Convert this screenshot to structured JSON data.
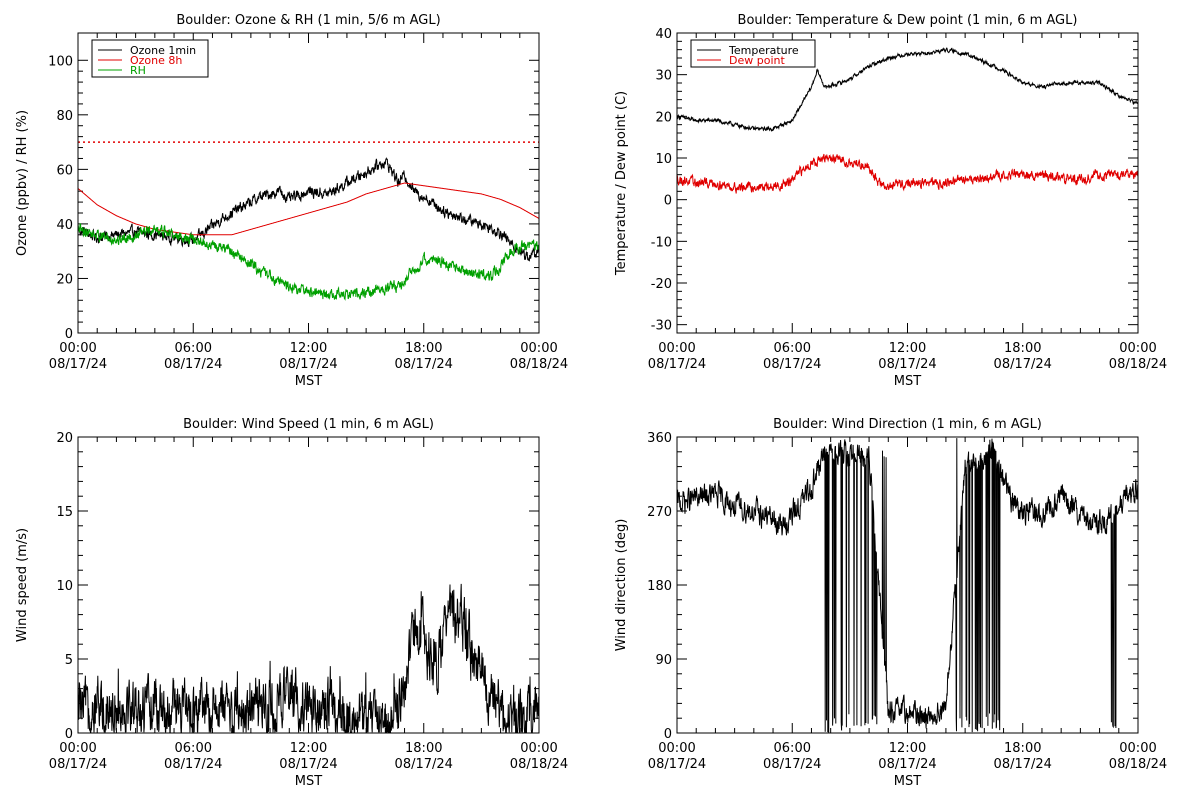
{
  "page": {
    "background": "#ffffff"
  },
  "chart_data": [
    {
      "id": "ozone_rh",
      "type": "line",
      "title": "Boulder: Ozone & RH (1 min, 5/6 m AGL)",
      "ylabel": "Ozone (ppbv) / RH (%)",
      "xlabel": "MST",
      "xlim": [
        0,
        24
      ],
      "ylim": [
        0,
        110
      ],
      "yticks": [
        0,
        20,
        40,
        60,
        80,
        100
      ],
      "xtick_times": [
        "00:00",
        "06:00",
        "12:00",
        "18:00",
        "00:00"
      ],
      "xtick_dates": [
        "08/17/24",
        "08/17/24",
        "08/17/24",
        "08/17/24",
        "08/18/24"
      ],
      "legend_position": "top-left",
      "reference_line": {
        "y": 70,
        "color": "#e00000",
        "style": "dotted"
      },
      "series": [
        {
          "name": "Ozone 1min",
          "color": "#000000",
          "noise": 1.6,
          "x": [
            0,
            1,
            2,
            3,
            4,
            5,
            6,
            6.8,
            7.5,
            8.5,
            9.5,
            10.5,
            11,
            12,
            13,
            14,
            14.5,
            15,
            15.5,
            16,
            16.3,
            16.7,
            17,
            17.5,
            18,
            19,
            20,
            21,
            22,
            22.5,
            23,
            23.5,
            24
          ],
          "y": [
            38,
            35,
            36,
            37,
            36,
            35,
            34,
            38,
            42,
            46,
            50,
            52,
            49,
            52,
            51,
            55,
            57,
            59,
            61,
            63,
            60,
            55,
            58,
            52,
            50,
            45,
            42,
            40,
            37,
            33,
            30,
            28,
            30
          ]
        },
        {
          "name": "Ozone 8h",
          "color": "#e00000",
          "noise": 0,
          "x": [
            0,
            1,
            2,
            3,
            4,
            5,
            6,
            7,
            8,
            9,
            10,
            11,
            12,
            13,
            14,
            15,
            16,
            17,
            18,
            19,
            20,
            21,
            22,
            23,
            24
          ],
          "y": [
            53,
            47,
            43,
            40,
            38,
            37,
            36,
            36,
            36,
            38,
            40,
            42,
            44,
            46,
            48,
            51,
            53,
            55,
            54,
            53,
            52,
            51,
            49,
            46,
            42
          ]
        },
        {
          "name": "RH",
          "color": "#00a000",
          "noise": 1.6,
          "x": [
            0,
            1,
            2,
            3,
            4,
            5,
            6,
            7,
            8,
            9,
            10,
            11,
            12,
            13,
            14,
            15,
            16,
            16.8,
            17.5,
            18,
            19,
            20,
            21,
            21.5,
            22,
            22.5,
            23,
            24
          ],
          "y": [
            38,
            36,
            34,
            36,
            38,
            36,
            34,
            32,
            30,
            25,
            21,
            17,
            15,
            14,
            14,
            15,
            16,
            18,
            23,
            27,
            26,
            23,
            21,
            21,
            24,
            30,
            32,
            32
          ]
        }
      ]
    },
    {
      "id": "temp_dew",
      "type": "line",
      "title": "Boulder: Temperature & Dew point (1 min, 6 m AGL)",
      "ylabel": "Temperature / Dew point (C)",
      "xlabel": "MST",
      "xlim": [
        0,
        24
      ],
      "ylim": [
        -32,
        40
      ],
      "yticks": [
        -30,
        -20,
        -10,
        0,
        10,
        20,
        30,
        40
      ],
      "xtick_times": [
        "00:00",
        "06:00",
        "12:00",
        "18:00",
        "00:00"
      ],
      "xtick_dates": [
        "08/17/24",
        "08/17/24",
        "08/17/24",
        "08/17/24",
        "08/18/24"
      ],
      "legend_position": "top-left",
      "series": [
        {
          "name": "Temperature",
          "color": "#000000",
          "noise": 0.35,
          "x": [
            0,
            1,
            2,
            3,
            4,
            5,
            6,
            6.5,
            7,
            7.3,
            7.7,
            8.5,
            9,
            10,
            11,
            12,
            13,
            14,
            15,
            16,
            17,
            18,
            19,
            20,
            21,
            22,
            23,
            24
          ],
          "y": [
            20,
            19,
            19,
            18,
            17,
            17,
            19,
            23,
            27,
            31,
            27,
            28,
            29,
            32,
            34,
            35,
            35,
            36,
            35,
            33,
            31,
            28,
            27,
            28,
            28,
            28,
            25,
            23
          ]
        },
        {
          "name": "Dew point",
          "color": "#e00000",
          "noise": 0.9,
          "x": [
            0,
            1,
            2,
            3,
            4,
            5,
            5.8,
            6.3,
            7,
            8,
            9,
            10,
            10.5,
            11,
            12,
            13,
            14,
            15,
            16,
            17,
            18,
            19,
            20,
            21,
            22,
            23,
            24
          ],
          "y": [
            5,
            4,
            4,
            3,
            3,
            3,
            4,
            6,
            9,
            10,
            9,
            8,
            4,
            3,
            4,
            4,
            4,
            5,
            5,
            6,
            6,
            6,
            5,
            5,
            6,
            6,
            6
          ]
        }
      ]
    },
    {
      "id": "wind_speed",
      "type": "line",
      "title": "Boulder: Wind Speed (1 min, 6 m AGL)",
      "ylabel": "Wind speed (m/s)",
      "xlabel": "MST",
      "xlim": [
        0,
        24
      ],
      "ylim": [
        0,
        20
      ],
      "yticks": [
        0,
        5,
        10,
        15,
        20
      ],
      "xtick_times": [
        "00:00",
        "06:00",
        "12:00",
        "18:00",
        "00:00"
      ],
      "xtick_dates": [
        "08/17/24",
        "08/17/24",
        "08/17/24",
        "08/17/24",
        "08/18/24"
      ],
      "series": [
        {
          "name": "",
          "color": "#000000",
          "noise": 1.5,
          "x": [
            0,
            2,
            4,
            6,
            8,
            10,
            11,
            12,
            13,
            14,
            15,
            16,
            16.5,
            17,
            17.5,
            18,
            18.5,
            19,
            19.5,
            20,
            20.5,
            21,
            22,
            23,
            24
          ],
          "y": [
            1.7,
            1.8,
            1.6,
            1.5,
            1.5,
            1.6,
            2.4,
            2.0,
            1.6,
            1.0,
            0.9,
            1.0,
            1.5,
            2.5,
            7.5,
            6.5,
            4.5,
            6.0,
            8.5,
            7.5,
            5.5,
            4.0,
            1.2,
            1.0,
            1.2
          ]
        }
      ]
    },
    {
      "id": "wind_dir",
      "type": "line",
      "title": "Boulder: Wind Direction (1 min, 6 m AGL)",
      "ylabel": "Wind direction (deg)",
      "xlabel": "MST",
      "xlim": [
        0,
        24
      ],
      "ylim": [
        0,
        360
      ],
      "yticks": [
        0,
        90,
        180,
        270,
        360
      ],
      "xtick_times": [
        "00:00",
        "06:00",
        "12:00",
        "18:00",
        "00:00"
      ],
      "xtick_dates": [
        "08/17/24",
        "08/17/24",
        "08/17/24",
        "08/17/24",
        "08/18/24"
      ],
      "series": [
        {
          "name": "",
          "color": "#000000",
          "noise": 12,
          "x": [
            0,
            1,
            2,
            3,
            4,
            5,
            5.5,
            6,
            6.5,
            7,
            7.5,
            8,
            9,
            10,
            11,
            12,
            13,
            14,
            15,
            16,
            16.5,
            17,
            18,
            19,
            20,
            21,
            22,
            22.5,
            23,
            23.5,
            24
          ],
          "y": [
            280,
            285,
            290,
            275,
            270,
            260,
            250,
            265,
            280,
            300,
            330,
            345,
            340,
            335,
            25,
            25,
            20,
            30,
            320,
            335,
            345,
            300,
            270,
            265,
            290,
            260,
            255,
            258,
            270,
            290,
            300
          ]
        }
      ]
    }
  ]
}
